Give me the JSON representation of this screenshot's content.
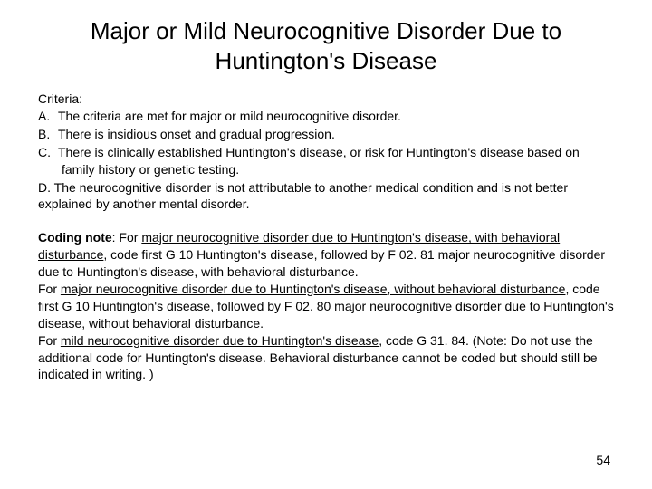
{
  "title": "Major or Mild Neurocognitive Disorder Due to Huntington's Disease",
  "criteria_label": "Criteria:",
  "criteria": [
    {
      "marker": "A.",
      "text": "The criteria are met for major or mild neurocognitive disorder."
    },
    {
      "marker": "B.",
      "text": "There is insidious onset and gradual progression."
    },
    {
      "marker": "C.",
      "text": "There is clinically established Huntington's disease, or risk for Huntington's disease based on family history or genetic testing."
    }
  ],
  "criteria_d": "D. The neurocognitive disorder is not attributable to another medical condition and is not better explained by another mental disorder.",
  "coding": {
    "label": "Coding note",
    "s1a": ": For ",
    "u1": "major neurocognitive disorder due to Huntington's disease, with behavioral disturbance",
    "s1b": ", code first G 10 Huntington's disease, followed by F 02. 81 major neurocognitive disorder due to Huntington's disease, with behavioral disturbance.",
    "s2a": "For ",
    "u2": "major neurocognitive disorder due to Huntington's disease, without behavioral disturbance",
    "s2b": ", code first G 10 Huntington's disease, followed by F 02. 80 major neurocognitive disorder due to Huntington's disease, without behavioral disturbance.",
    "s3a": "For ",
    "u3": "mild neurocognitive disorder due to Huntington's disease",
    "s3b": ", code G 31. 84. (Note: Do not use the additional code for Huntington's disease. Behavioral disturbance cannot be coded but should still be indicated in writing. )"
  },
  "page_number": "54"
}
